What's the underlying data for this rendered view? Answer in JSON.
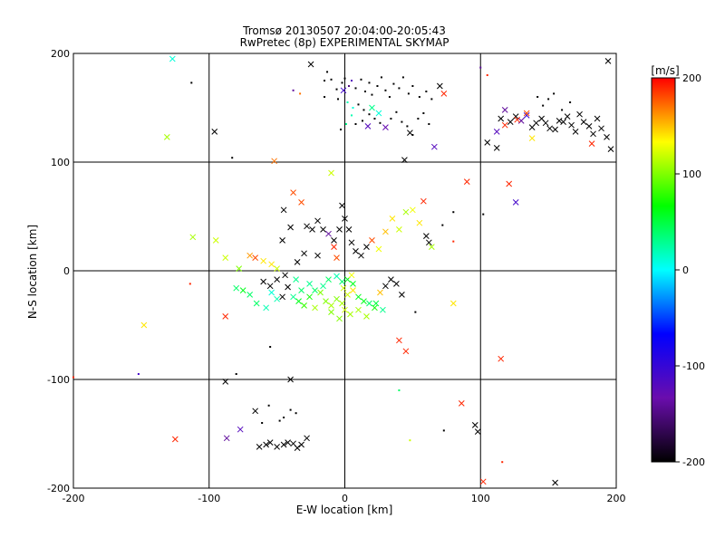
{
  "chart_data": {
    "type": "scatter",
    "title": "Tromsø 20130507 20:04:00-20:05:43",
    "subtitle": "RwPretec (8p) EXPERIMENTAL SKYMAP",
    "xlabel": "E-W location [km]",
    "ylabel": "N-S location [km]",
    "xlim": [
      -200,
      200
    ],
    "ylim": [
      -200,
      200
    ],
    "xticks": [
      -200,
      -100,
      0,
      100,
      200
    ],
    "yticks": [
      -200,
      -100,
      0,
      100,
      200
    ],
    "xtick_labels": [
      "-200",
      "-100",
      "0",
      "100",
      "200"
    ],
    "ytick_labels": [
      "-200",
      "-100",
      "0",
      "100",
      "200"
    ],
    "grid": true,
    "colorbar": {
      "label": "[m/s]",
      "range": [
        -200,
        200
      ],
      "ticks": [
        200,
        100,
        0,
        -100,
        -200
      ],
      "tick_labels": [
        "200",
        "100",
        "0",
        "-100",
        "-200"
      ],
      "stops": [
        "#000000",
        "#6a0dad",
        "#0000ff",
        "#00ffff",
        "#00ff00",
        "#ffff00",
        "#ff0000"
      ]
    },
    "points": [
      [
        -127,
        195,
        "x",
        10
      ],
      [
        -113,
        173,
        "d",
        -200
      ],
      [
        -96,
        128,
        "x",
        -200
      ],
      [
        -83,
        104,
        "d",
        -200
      ],
      [
        -131,
        123,
        "x",
        110
      ],
      [
        -52,
        101,
        "x",
        170
      ],
      [
        -25,
        190,
        "x",
        -200
      ],
      [
        -38,
        166,
        "d",
        -140
      ],
      [
        -33,
        163,
        "d",
        170
      ],
      [
        -15,
        175,
        "d",
        -200
      ],
      [
        -13,
        183,
        "d",
        -200
      ],
      [
        -10,
        176,
        "d",
        -200
      ],
      [
        -6,
        167,
        "d",
        -200
      ],
      [
        -2,
        173,
        "d",
        -200
      ],
      [
        0,
        177,
        "d",
        -200
      ],
      [
        3,
        170,
        "d",
        -150
      ],
      [
        5,
        175,
        "d",
        -120
      ],
      [
        8,
        168,
        "d",
        -200
      ],
      [
        12,
        176,
        "d",
        -200
      ],
      [
        15,
        165,
        "d",
        -200
      ],
      [
        18,
        173,
        "d",
        -200
      ],
      [
        20,
        162,
        "d",
        -200
      ],
      [
        24,
        170,
        "d",
        -200
      ],
      [
        27,
        178,
        "d",
        -200
      ],
      [
        30,
        166,
        "d",
        -200
      ],
      [
        33,
        160,
        "d",
        -200
      ],
      [
        36,
        172,
        "d",
        -200
      ],
      [
        40,
        168,
        "d",
        -200
      ],
      [
        43,
        178,
        "d",
        -200
      ],
      [
        47,
        163,
        "d",
        -200
      ],
      [
        50,
        170,
        "d",
        -200
      ],
      [
        55,
        160,
        "d",
        -200
      ],
      [
        60,
        165,
        "d",
        -200
      ],
      [
        64,
        158,
        "d",
        -200
      ],
      [
        70,
        170,
        "x",
        -200
      ],
      [
        73,
        163,
        "x",
        190
      ],
      [
        -15,
        160,
        "d",
        -200
      ],
      [
        -5,
        158,
        "d",
        -200
      ],
      [
        2,
        155,
        "d",
        20
      ],
      [
        6,
        150,
        "d",
        10
      ],
      [
        10,
        153,
        "d",
        -200
      ],
      [
        14,
        148,
        "d",
        -200
      ],
      [
        18,
        144,
        "d",
        -200
      ],
      [
        22,
        140,
        "d",
        -200
      ],
      [
        26,
        136,
        "d",
        -200
      ],
      [
        30,
        132,
        "x",
        -130
      ],
      [
        34,
        140,
        "d",
        -200
      ],
      [
        38,
        146,
        "d",
        -200
      ],
      [
        42,
        137,
        "d",
        -200
      ],
      [
        46,
        133,
        "d",
        -200
      ],
      [
        50,
        125,
        "d",
        -200
      ],
      [
        54,
        140,
        "d",
        -200
      ],
      [
        58,
        145,
        "d",
        -200
      ],
      [
        62,
        135,
        "d",
        -200
      ],
      [
        -3,
        130,
        "d",
        -200
      ],
      [
        1,
        135,
        "d",
        30
      ],
      [
        5,
        143,
        "d",
        20
      ],
      [
        8,
        135,
        "d",
        -200
      ],
      [
        13,
        138,
        "d",
        -200
      ],
      [
        17,
        133,
        "x",
        -120
      ],
      [
        20,
        150,
        "x",
        30
      ],
      [
        25,
        145,
        "x",
        10
      ],
      [
        48,
        127,
        "x",
        -200
      ],
      [
        66,
        114,
        "x",
        -120
      ],
      [
        44,
        102,
        "x",
        -200
      ],
      [
        -1,
        166,
        "x",
        -110
      ],
      [
        100,
        187,
        "d",
        -140
      ],
      [
        105,
        180,
        "d",
        190
      ],
      [
        105,
        118,
        "x",
        -200
      ],
      [
        112,
        113,
        "x",
        -200
      ],
      [
        115,
        140,
        "x",
        -200
      ],
      [
        118,
        148,
        "x",
        -140
      ],
      [
        122,
        137,
        "x",
        -200
      ],
      [
        126,
        142,
        "x",
        -200
      ],
      [
        130,
        138,
        "x",
        -140
      ],
      [
        134,
        143,
        "x",
        -100
      ],
      [
        138,
        132,
        "x",
        -200
      ],
      [
        141,
        136,
        "x",
        -200
      ],
      [
        145,
        140,
        "x",
        -200
      ],
      [
        148,
        136,
        "x",
        -200
      ],
      [
        151,
        131,
        "x",
        -200
      ],
      [
        155,
        130,
        "x",
        -200
      ],
      [
        158,
        138,
        "x",
        -200
      ],
      [
        161,
        137,
        "x",
        -200
      ],
      [
        164,
        142,
        "x",
        -200
      ],
      [
        167,
        134,
        "x",
        -200
      ],
      [
        170,
        128,
        "x",
        -200
      ],
      [
        173,
        144,
        "x",
        -200
      ],
      [
        176,
        137,
        "x",
        -200
      ],
      [
        180,
        133,
        "x",
        -200
      ],
      [
        183,
        126,
        "x",
        -200
      ],
      [
        186,
        140,
        "x",
        -200
      ],
      [
        189,
        131,
        "x",
        -200
      ],
      [
        193,
        123,
        "x",
        -200
      ],
      [
        196,
        112,
        "x",
        -200
      ],
      [
        194,
        193,
        "x",
        -200
      ],
      [
        142,
        160,
        "d",
        -200
      ],
      [
        146,
        152,
        "d",
        -200
      ],
      [
        150,
        158,
        "d",
        -200
      ],
      [
        154,
        163,
        "d",
        -200
      ],
      [
        160,
        148,
        "d",
        -200
      ],
      [
        166,
        155,
        "d",
        -200
      ],
      [
        138,
        122,
        "x",
        140
      ],
      [
        134,
        145,
        "x",
        180
      ],
      [
        127,
        139,
        "x",
        190
      ],
      [
        118,
        134,
        "x",
        190
      ],
      [
        112,
        128,
        "x",
        -120
      ],
      [
        182,
        117,
        "x",
        190
      ],
      [
        -45,
        56,
        "x",
        -200
      ],
      [
        -38,
        72,
        "x",
        180
      ],
      [
        -32,
        63,
        "x",
        180
      ],
      [
        -28,
        41,
        "x",
        -200
      ],
      [
        -24,
        38,
        "x",
        -200
      ],
      [
        -20,
        46,
        "x",
        -200
      ],
      [
        -16,
        38,
        "x",
        -200
      ],
      [
        -12,
        34,
        "x",
        -140
      ],
      [
        -8,
        28,
        "x",
        -200
      ],
      [
        -4,
        38,
        "x",
        -200
      ],
      [
        -8,
        22,
        "x",
        190
      ],
      [
        -6,
        12,
        "x",
        180
      ],
      [
        -20,
        14,
        "x",
        -200
      ],
      [
        -30,
        16,
        "x",
        -200
      ],
      [
        -35,
        8,
        "x",
        -200
      ],
      [
        -40,
        40,
        "x",
        -200
      ],
      [
        -46,
        28,
        "x",
        -200
      ],
      [
        -10,
        90,
        "x",
        120
      ],
      [
        -2,
        60,
        "x",
        -200
      ],
      [
        0,
        48,
        "x",
        -200
      ],
      [
        3,
        38,
        "x",
        -200
      ],
      [
        5,
        26,
        "x",
        -200
      ],
      [
        8,
        18,
        "x",
        -200
      ],
      [
        12,
        14,
        "x",
        -200
      ],
      [
        16,
        22,
        "x",
        -200
      ],
      [
        20,
        28,
        "x",
        180
      ],
      [
        25,
        20,
        "x",
        130
      ],
      [
        30,
        36,
        "x",
        150
      ],
      [
        35,
        48,
        "x",
        140
      ],
      [
        40,
        38,
        "x",
        120
      ],
      [
        45,
        54,
        "x",
        110
      ],
      [
        50,
        56,
        "x",
        130
      ],
      [
        55,
        44,
        "x",
        140
      ],
      [
        58,
        64,
        "x",
        190
      ],
      [
        60,
        32,
        "x",
        -200
      ],
      [
        62,
        26,
        "x",
        -200
      ],
      [
        64,
        22,
        "x",
        110
      ],
      [
        -70,
        14,
        "x",
        160
      ],
      [
        -66,
        12,
        "x",
        180
      ],
      [
        -60,
        9,
        "x",
        140
      ],
      [
        -54,
        6,
        "x",
        140
      ],
      [
        -50,
        2,
        "x",
        120
      ],
      [
        -112,
        31,
        "x",
        110
      ],
      [
        -95,
        28,
        "x",
        120
      ],
      [
        -88,
        12,
        "x",
        120
      ],
      [
        -78,
        2,
        "x",
        100
      ],
      [
        -114,
        -12,
        "d",
        190
      ],
      [
        80,
        54,
        "d",
        -200
      ],
      [
        80,
        27,
        "d",
        190
      ],
      [
        72,
        42,
        "d",
        -200
      ],
      [
        90,
        82,
        "x",
        190
      ],
      [
        102,
        52,
        "d",
        -200
      ],
      [
        121,
        80,
        "x",
        190
      ],
      [
        126,
        63,
        "x",
        -110
      ],
      [
        -80,
        -16,
        "x",
        40
      ],
      [
        -75,
        -18,
        "x",
        60
      ],
      [
        -70,
        -22,
        "x",
        40
      ],
      [
        -65,
        -30,
        "x",
        40
      ],
      [
        -58,
        -34,
        "x",
        20
      ],
      [
        -54,
        -20,
        "x",
        10
      ],
      [
        -50,
        -26,
        "x",
        20
      ],
      [
        -46,
        -24,
        "x",
        -200
      ],
      [
        -42,
        -15,
        "x",
        -200
      ],
      [
        -38,
        -24,
        "x",
        30
      ],
      [
        -34,
        -28,
        "x",
        60
      ],
      [
        -30,
        -32,
        "x",
        80
      ],
      [
        -26,
        -24,
        "x",
        70
      ],
      [
        -22,
        -34,
        "x",
        110
      ],
      [
        -18,
        -20,
        "x",
        100
      ],
      [
        -14,
        -28,
        "x",
        100
      ],
      [
        -10,
        -32,
        "x",
        110
      ],
      [
        -6,
        -26,
        "x",
        100
      ],
      [
        -2,
        -30,
        "x",
        110
      ],
      [
        2,
        -22,
        "x",
        120
      ],
      [
        6,
        -18,
        "x",
        140
      ],
      [
        10,
        -24,
        "x",
        60
      ],
      [
        14,
        -28,
        "x",
        60
      ],
      [
        18,
        -30,
        "x",
        40
      ],
      [
        22,
        -34,
        "x",
        70
      ],
      [
        26,
        -20,
        "x",
        150
      ],
      [
        30,
        -14,
        "x",
        -200
      ],
      [
        34,
        -8,
        "x",
        -200
      ],
      [
        38,
        -12,
        "x",
        -200
      ],
      [
        42,
        -22,
        "x",
        -200
      ],
      [
        -6,
        -5,
        "x",
        20
      ],
      [
        -2,
        -10,
        "x",
        40
      ],
      [
        2,
        -8,
        "x",
        60
      ],
      [
        6,
        -12,
        "x",
        60
      ],
      [
        -12,
        -8,
        "x",
        40
      ],
      [
        -16,
        -14,
        "x",
        30
      ],
      [
        -22,
        -18,
        "x",
        40
      ],
      [
        -26,
        -12,
        "x",
        30
      ],
      [
        -32,
        -18,
        "x",
        40
      ],
      [
        -36,
        -8,
        "x",
        30
      ],
      [
        -10,
        -38,
        "x",
        100
      ],
      [
        -4,
        -44,
        "x",
        100
      ],
      [
        0,
        -36,
        "x",
        120
      ],
      [
        4,
        -40,
        "x",
        110
      ],
      [
        10,
        -36,
        "x",
        110
      ],
      [
        16,
        -42,
        "x",
        110
      ],
      [
        -60,
        -10,
        "x",
        -200
      ],
      [
        -55,
        -14,
        "x",
        -200
      ],
      [
        -50,
        -8,
        "x",
        -200
      ],
      [
        -44,
        -4,
        "x",
        -200
      ],
      [
        -88,
        -42,
        "x",
        190
      ],
      [
        -148,
        -50,
        "x",
        140
      ],
      [
        -125,
        -155,
        "x",
        190
      ],
      [
        -87,
        -154,
        "x",
        -140
      ],
      [
        -77,
        -146,
        "x",
        -120
      ],
      [
        -66,
        -129,
        "x",
        -200
      ],
      [
        -63,
        -162,
        "x",
        -200
      ],
      [
        -58,
        -160,
        "x",
        -200
      ],
      [
        -55,
        -158,
        "x",
        -200
      ],
      [
        -50,
        -162,
        "x",
        -200
      ],
      [
        -45,
        -160,
        "x",
        -200
      ],
      [
        -42,
        -158,
        "x",
        -200
      ],
      [
        -38,
        -159,
        "x",
        -200
      ],
      [
        -35,
        -163,
        "x",
        -200
      ],
      [
        -32,
        -160,
        "x",
        -200
      ],
      [
        -28,
        -154,
        "x",
        -200
      ],
      [
        -40,
        -128,
        "d",
        -200
      ],
      [
        -36,
        -131,
        "d",
        -200
      ],
      [
        -45,
        -135,
        "d",
        -200
      ],
      [
        -48,
        -138,
        "d",
        -200
      ],
      [
        -56,
        -124,
        "d",
        -200
      ],
      [
        -61,
        -140,
        "d",
        -200
      ],
      [
        -88,
        -102,
        "x",
        -200
      ],
      [
        -80,
        -95,
        "d",
        -200
      ],
      [
        -55,
        -70,
        "d",
        -200
      ],
      [
        -152,
        -95,
        "d",
        -110
      ],
      [
        -200,
        -98,
        "d",
        190
      ],
      [
        -40,
        -100,
        "x",
        -200
      ],
      [
        40,
        -64,
        "x",
        190
      ],
      [
        45,
        -74,
        "x",
        190
      ],
      [
        52,
        -38,
        "d",
        -200
      ],
      [
        80,
        -30,
        "x",
        140
      ],
      [
        86,
        -122,
        "x",
        190
      ],
      [
        73,
        -147,
        "d",
        -200
      ],
      [
        96,
        -142,
        "x",
        -200
      ],
      [
        98,
        -148,
        "x",
        -200
      ],
      [
        102,
        -194,
        "x",
        190
      ],
      [
        115,
        -81,
        "x",
        190
      ],
      [
        116,
        -176,
        "d",
        190
      ],
      [
        155,
        -195,
        "x",
        -200
      ],
      [
        48,
        -156,
        "d",
        120
      ],
      [
        40,
        -110,
        "d",
        40
      ],
      [
        23,
        -30,
        "x",
        50
      ],
      [
        28,
        -36,
        "x",
        30
      ],
      [
        -1,
        -16,
        "x",
        120
      ],
      [
        5,
        -4,
        "x",
        130
      ]
    ]
  }
}
